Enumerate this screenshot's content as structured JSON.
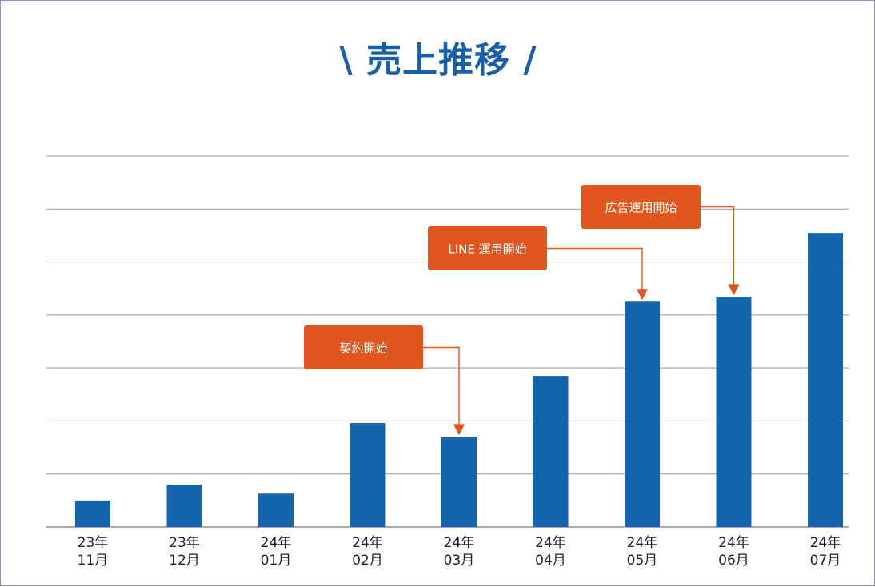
{
  "chart_data": {
    "type": "bar",
    "title": "\\ 売上推移 /",
    "categories": [
      [
        "23年",
        "11月"
      ],
      [
        "23年",
        "12月"
      ],
      [
        "24年",
        "01月"
      ],
      [
        "24年",
        "02月"
      ],
      [
        "24年",
        "03月"
      ],
      [
        "24年",
        "04月"
      ],
      [
        "24年",
        "05月"
      ],
      [
        "24年",
        "06月"
      ],
      [
        "24年",
        "07月"
      ]
    ],
    "values": [
      0.5,
      0.8,
      0.63,
      1.96,
      1.7,
      2.85,
      4.25,
      4.34,
      5.55
    ],
    "ylim": [
      0,
      7
    ],
    "grid": true,
    "bar_color": "#1565ad",
    "grid_color": "#999999",
    "annotations": [
      {
        "label": "契約開始",
        "category_index": 4
      },
      {
        "label": "LINE 運用開始",
        "category_index": 6
      },
      {
        "label": "広告運用開始",
        "category_index": 7
      }
    ],
    "annotation_color": "#e0561e"
  }
}
